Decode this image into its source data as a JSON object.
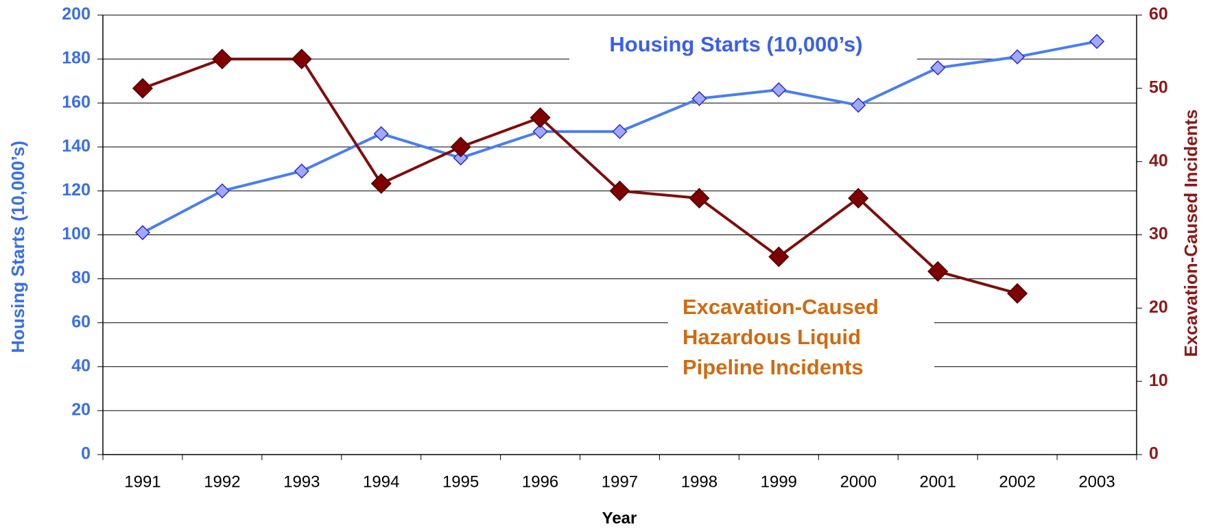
{
  "chart_data": {
    "type": "line",
    "x_label": "Year",
    "y_label": "Housing Starts (10,000’s)",
    "y2_label": "Excavation-Caused Incidents",
    "categories": [
      "1991",
      "1992",
      "1993",
      "1994",
      "1995",
      "1996",
      "1997",
      "1998",
      "1999",
      "2000",
      "2001",
      "2002",
      "2003"
    ],
    "ylim": [
      0,
      200
    ],
    "yticks": [
      0,
      20,
      40,
      60,
      80,
      100,
      120,
      140,
      160,
      180,
      200
    ],
    "y2lim": [
      0,
      60
    ],
    "y2ticks": [
      0,
      10,
      20,
      30,
      40,
      50,
      60
    ],
    "grid": true,
    "series": [
      {
        "name": "Housing Starts (10,000’s)",
        "color": "#4a7ef0",
        "marker_color": "#a0a8ff",
        "values": [
          101,
          120,
          129,
          146,
          135,
          147,
          147,
          162,
          166,
          159,
          176,
          181,
          188
        ]
      },
      {
        "label_lines": [
          "Excavation-Caused",
          "Hazardous Liquid",
          "Pipeline Incidents"
        ],
        "color": "#7f0d0d",
        "marker_color": "#7f0000",
        "axis": "y2",
        "values": [
          50,
          54,
          54,
          37,
          42,
          46,
          36,
          35,
          27,
          35,
          25,
          22,
          null
        ]
      }
    ]
  }
}
